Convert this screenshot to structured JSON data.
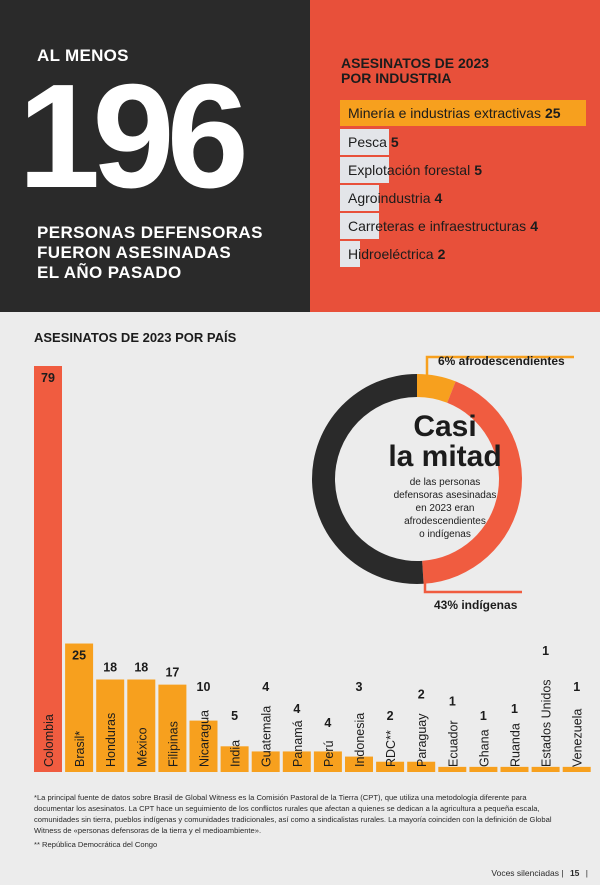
{
  "header": {
    "pre_label": "AL MENOS",
    "big_number": "196",
    "sub_lines": [
      "PERSONAS DEFENSORAS",
      "FUERON ASESINADAS",
      "EL AÑO PASADO"
    ]
  },
  "industry": {
    "title_lines": [
      "ASESINATOS DE 2023",
      "POR INDUSTRIA"
    ],
    "items": [
      {
        "label": "Minería e industrias extractivas",
        "value": 25,
        "highlight": true
      },
      {
        "label": "Pesca",
        "value": 5,
        "highlight": false
      },
      {
        "label": "Explotación forestal",
        "value": 5,
        "highlight": false
      },
      {
        "label": "Agroindustria",
        "value": 4,
        "highlight": false
      },
      {
        "label": "Carreteras e infraestructuras",
        "value": 4,
        "highlight": false
      },
      {
        "label": "Hidroeléctrica",
        "value": 2,
        "highlight": false
      }
    ]
  },
  "donut": {
    "headline_1": "Casi",
    "headline_2": "la mitad",
    "description_lines": [
      "de las personas",
      "defensoras asesinadas",
      "en 2023 eran",
      "afrodescendientes",
      "o indígenas"
    ],
    "label_afro": "6% afrodescendientes",
    "label_indigenous": "43% indígenas"
  },
  "colors": {
    "dark": "#2a2a2a",
    "red": "#f05c40",
    "red_panel": "#e8503a",
    "orange": "#f7a01e",
    "light_box": "#e3e5e9",
    "background": "#ececec"
  },
  "chart_data": [
    {
      "type": "bar",
      "title": "ASESINATOS DE 2023 POR PAÍS",
      "xlabel": "",
      "ylabel": "",
      "ylim": [
        0,
        79
      ],
      "grid": false,
      "categories": [
        "Colombia",
        "Brasil*",
        "Honduras",
        "México",
        "Filipinas",
        "Nicaragua",
        "India",
        "Guatemala",
        "Panamá",
        "Perú",
        "Indonesia",
        "RDC**",
        "Paraguay",
        "Ecuador",
        "Ghana",
        "Ruanda",
        "Estados Unidos",
        "Venezuela"
      ],
      "values": [
        79,
        25,
        18,
        18,
        17,
        10,
        5,
        4,
        4,
        4,
        3,
        2,
        2,
        1,
        1,
        1,
        1,
        1
      ],
      "highlight_category": "Colombia"
    },
    {
      "type": "pie",
      "title": "Casi la mitad",
      "categories": [
        "afrodescendientes",
        "indígenas",
        "otros"
      ],
      "values": [
        6,
        43,
        51
      ],
      "labels": [
        "6% afrodescendientes",
        "43% indígenas",
        ""
      ]
    }
  ],
  "footnotes": {
    "note1": "*La principal fuente de datos sobre Brasil de Global Witness es la Comisión Pastoral de la Tierra (CPT), que utiliza una metodología diferente para documentar los asesinatos. La CPT hace un seguimiento de los conflictos rurales que afectan a quienes se dedican a la agricultura a pequeña escala, comunidades sin tierra, pueblos indígenas y comunidades tradicionales, así como a sindicalistas rurales. La mayoría coinciden con la definición de Global Witness de «personas defensoras de la tierra y el medioambiente».",
    "note2": "** República Democrática del Congo"
  },
  "footer": {
    "publication": "Voces silenciadas",
    "page": "15"
  }
}
